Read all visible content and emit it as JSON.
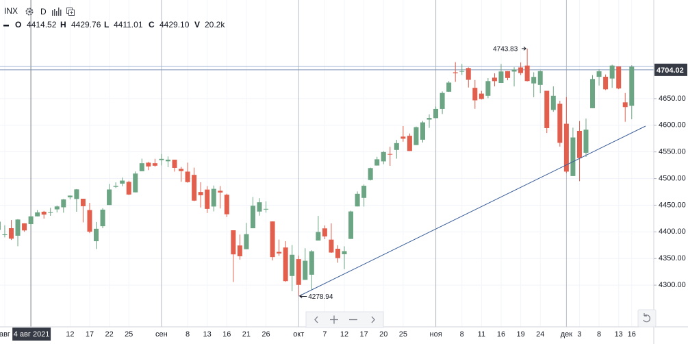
{
  "chart_data": {
    "type": "candlestick",
    "header": {
      "symbol": "INX",
      "interval": "D",
      "labels": [
        "O",
        "H",
        "L",
        "C",
        "V"
      ],
      "values": [
        "4414.52",
        "4429.76",
        "4411.01",
        "4429.10",
        "20.2k"
      ]
    },
    "crosshair_label": "4 авг 2021",
    "last_price": 4704.02,
    "up_color": "#6ba583",
    "down_color": "#e25f4e",
    "ylim": [
      4223,
      4835
    ],
    "yticks": [
      {
        "value": 4300,
        "label": "4300.00"
      },
      {
        "value": 4350,
        "label": "4350.00"
      },
      {
        "value": 4400,
        "label": "4400.00"
      },
      {
        "value": 4450,
        "label": "4450.00"
      },
      {
        "value": 4500,
        "label": "4500.00"
      },
      {
        "value": 4550,
        "label": "4550.00"
      },
      {
        "value": 4600,
        "label": "4600.00"
      },
      {
        "value": 4650,
        "label": "4650.00"
      }
    ],
    "categories": [
      null,
      "авг",
      null,
      null,
      null,
      null,
      null,
      null,
      null,
      null,
      null,
      "12",
      null,
      null,
      "17",
      null,
      null,
      "22",
      null,
      null,
      "25",
      null,
      null,
      null,
      null,
      "сен",
      null,
      null,
      null,
      "8",
      null,
      null,
      "13",
      null,
      null,
      "16",
      null,
      null,
      "21",
      null,
      null,
      "26",
      null,
      null,
      null,
      null,
      "окт",
      null,
      null,
      null,
      "7",
      null,
      null,
      "12",
      null,
      null,
      "17",
      null,
      null,
      "20",
      null,
      null,
      "25",
      null,
      null,
      null,
      null,
      "ноя",
      null,
      null,
      null,
      "8",
      null,
      null,
      "11",
      null,
      null,
      "16",
      null,
      null,
      "19",
      null,
      null,
      "24",
      null,
      null,
      null,
      "дек",
      null,
      "3",
      null,
      null,
      "8",
      null,
      null,
      "13",
      null,
      "16"
    ],
    "open": [
      4403.59,
      4395.12,
      4406.86,
      4392.74,
      4415.95,
      4414.52,
      4429.07,
      4437.77,
      4435.79,
      4442.18,
      4446.08,
      4464.84,
      4461.65,
      4462.12,
      4440.94,
      4382.44,
      4410.56,
      4450.29,
      4484.4,
      4490.45,
      4493.75,
      4474.1,
      4513.76,
      4529.75,
      4528.8,
      4534.48,
      4532.42,
      4535.38,
      4518.09,
      4513.02,
      4506.92,
      4474.81,
      4479.33,
      4447.49,
      4477.09,
      4469.74,
      4402.95,
      4374.45,
      4367.43,
      4406.75,
      4438.04,
      4442.12,
      4419.54,
      4362.41,
      4370.67,
      4317.16,
      4348.84,
      4309.87,
      4319.57,
      4383.73,
      4406.51,
      4385.44,
      4368.31,
      4358.01,
      4386.75,
      4447.69,
      4463.72,
      4497.34,
      4524.42,
      4532.24,
      4546.12,
      4553.69,
      4578.69,
      4580.22,
      4562.84,
      4572.87,
      4610.62,
      4613.34,
      4630.65,
      4662.93,
      4699.26,
      4701.48,
      4707.25,
      4670.26,
      4659.39,
      4655.24,
      4689.3,
      4679.42,
      4701.5,
      4700.72,
      4708.44,
      4712.0,
      4678.48,
      4675.78,
      4664.63,
      4628.75,
      4640.25,
      4602.82,
      4504.73,
      4589.49,
      4548.37,
      4631.97,
      4690.86,
      4691.0,
      4687.64,
      4710.3,
      4642.99,
      4636.46
    ],
    "high": [
      4429.97,
      4412.25,
      4422.18,
      4423.79,
      4416.17,
      4429.76,
      4440.82,
      4439.39,
      4445.21,
      4449.44,
      4461.77,
      4468.37,
      4480.26,
      4462.12,
      4454.32,
      4418.61,
      4444.35,
      4489.88,
      4492.81,
      4501.71,
      4495.9,
      4513.33,
      4537.36,
      4531.39,
      4537.11,
      4545.85,
      4541.45,
      4535.38,
      4521.79,
      4529.9,
      4520.47,
      4492.99,
      4485.68,
      4486.87,
      4485.87,
      4471.52,
      4402.95,
      4394.87,
      4416.75,
      4465.4,
      4463.12,
      4457.3,
      4419.54,
      4385.57,
      4382.55,
      4375.19,
      4355.51,
      4369.23,
      4365.57,
      4429.97,
      4412.02,
      4415.88,
      4374.89,
      4372.87,
      4439.73,
      4475.82,
      4488.75,
      4520.4,
      4540.87,
      4551.44,
      4559.67,
      4572.62,
      4598.53,
      4584.57,
      4597.55,
      4608.08,
      4620.34,
      4635.15,
      4663.46,
      4683.0,
      4718.5,
      4714.92,
      4708.53,
      4684.85,
      4664.55,
      4688.47,
      4697.42,
      4714.95,
      4701.5,
      4708.8,
      4717.75,
      4743.83,
      4699.39,
      4702.87,
      4664.63,
      4672.95,
      4646.02,
      4652.94,
      4595.46,
      4608.03,
      4612.6,
      4694.04,
      4705.06,
      4695.26,
      4713.57,
      4710.3,
      4660.47,
      4712.6
    ],
    "low": [
      4403.59,
      4389.65,
      4384.81,
      4373.0,
      4400.23,
      4411.01,
      4429.07,
      4424.74,
      4430.03,
      4436.42,
      4435.96,
      4460.82,
      4437.66,
      4417.83,
      4397.59,
      4367.73,
      4406.8,
      4450.29,
      4482.28,
      4485.66,
      4468.99,
      4474.1,
      4513.76,
      4515.8,
      4522.02,
      4524.66,
      4521.3,
      4513.0,
      4493.95,
      4492.07,
      4457.66,
      4445.7,
      4435.46,
      4438.37,
      4443.8,
      4427.76,
      4305.91,
      4347.96,
      4367.43,
      4406.75,
      4430.27,
      4436.19,
      4346.33,
      4355.08,
      4306.24,
      4288.52,
      4278.94,
      4309.87,
      4290.49,
      4383.73,
      4386.22,
      4360.59,
      4342.09,
      4329.92,
      4386.75,
      4447.69,
      4447.47,
      4496.41,
      4524.4,
      4526.89,
      4524.0,
      4537.36,
      4569.17,
      4551.66,
      4562.84,
      4567.59,
      4595.06,
      4613.34,
      4621.19,
      4662.59,
      4681.32,
      4694.39,
      4670.87,
      4630.86,
      4648.31,
      4650.77,
      4672.86,
      4679.42,
      4684.41,
      4672.78,
      4694.22,
      4682.17,
      4652.66,
      4659.89,
      4585.43,
      4625.26,
      4560.0,
      4510.27,
      4504.73,
      4495.12,
      4540.51,
      4631.97,
      4674.52,
      4665.98,
      4670.24,
      4667.6,
      4606.52,
      4611.22
    ],
    "close": [
      4419.15,
      4395.26,
      4387.16,
      4423.15,
      4402.66,
      4429.1,
      4436.52,
      4432.35,
      4436.75,
      4447.7,
      4460.83,
      4468.0,
      4479.71,
      4448.08,
      4400.27,
      4405.8,
      4441.67,
      4479.53,
      4486.23,
      4496.19,
      4470.0,
      4509.37,
      4528.79,
      4522.68,
      4524.09,
      4536.95,
      4535.43,
      4520.03,
      4514.07,
      4493.28,
      4458.58,
      4468.73,
      4443.05,
      4480.7,
      4473.75,
      4432.99,
      4357.73,
      4354.19,
      4395.64,
      4448.98,
      4455.48,
      4443.11,
      4352.63,
      4359.46,
      4307.54,
      4357.04,
      4300.46,
      4345.72,
      4363.55,
      4399.76,
      4391.34,
      4361.19,
      4350.65,
      4363.8,
      4438.26,
      4471.37,
      4486.46,
      4519.63,
      4536.19,
      4549.78,
      4544.9,
      4566.48,
      4574.79,
      4551.68,
      4596.42,
      4605.38,
      4613.67,
      4630.65,
      4660.57,
      4680.06,
      4697.53,
      4701.7,
      4685.25,
      4646.71,
      4649.27,
      4682.85,
      4682.8,
      4700.9,
      4688.67,
      4704.54,
      4697.96,
      4682.94,
      4690.7,
      4701.46,
      4594.62,
      4655.27,
      4567.0,
      4513.04,
      4577.1,
      4538.43,
      4591.67,
      4686.75,
      4701.21,
      4667.45,
      4712.02,
      4668.97,
      4634.09,
      4709.85
    ]
  }
}
